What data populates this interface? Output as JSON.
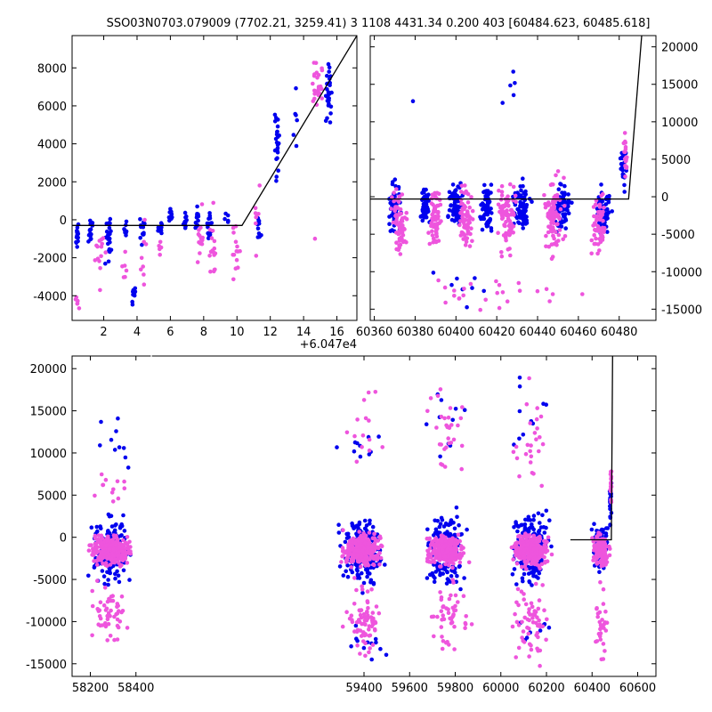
{
  "figure": {
    "title": "SSO03N0703.079009 (7702.21, 3259.41)    3 1108 4431.34 0.200 403 [60484.623, 60485.618]"
  },
  "colors": {
    "blue": "#0000ee",
    "magenta": "#ee55dd",
    "model": "#000000"
  },
  "chart_data": [
    {
      "id": "top_left",
      "type": "scatter",
      "title": "",
      "x_offset_label": "+6.047e4",
      "xlim": [
        0.1,
        17.2
      ],
      "ylim": [
        -5300,
        9700
      ],
      "xticks": [
        2,
        4,
        6,
        8,
        10,
        12,
        14,
        16
      ],
      "yticks": [
        -4000,
        -2000,
        0,
        2000,
        4000,
        6000,
        8000
      ],
      "ytick_side": "left",
      "model": {
        "x": [
          0.1,
          10.3,
          17.2
        ],
        "y": [
          -300,
          -300,
          9700
        ]
      },
      "series": [
        {
          "color": "blue",
          "clusters": [
            {
              "x": 0.4,
              "dx": 0.15,
              "ymin": -2000,
              "ymax": 200,
              "n": 14
            },
            {
              "x": 1.2,
              "dx": 0.15,
              "ymin": -1800,
              "ymax": 500,
              "n": 14
            },
            {
              "x": 2.3,
              "dx": 0.25,
              "ymin": -2500,
              "ymax": 300,
              "n": 22
            },
            {
              "x": 3.3,
              "dx": 0.15,
              "ymin": -1200,
              "ymax": 300,
              "n": 8
            },
            {
              "x": 3.8,
              "dx": 0.15,
              "ymin": -4900,
              "ymax": -3200,
              "n": 10
            },
            {
              "x": 4.3,
              "dx": 0.25,
              "ymin": -1500,
              "ymax": 500,
              "n": 12
            },
            {
              "x": 5.4,
              "dx": 0.25,
              "ymin": -1200,
              "ymax": 500,
              "n": 10
            },
            {
              "x": 6.0,
              "dx": 0.15,
              "ymin": -500,
              "ymax": 800,
              "n": 12
            },
            {
              "x": 6.9,
              "dx": 0.15,
              "ymin": -800,
              "ymax": 600,
              "n": 12
            },
            {
              "x": 7.6,
              "dx": 0.15,
              "ymin": -800,
              "ymax": 900,
              "n": 14
            },
            {
              "x": 8.4,
              "dx": 0.25,
              "ymin": -1500,
              "ymax": 900,
              "n": 16
            },
            {
              "x": 9.4,
              "dx": 0.15,
              "ymin": -300,
              "ymax": 400,
              "n": 5
            },
            {
              "x": 11.3,
              "dx": 0.2,
              "ymin": -1500,
              "ymax": 1000,
              "n": 10
            },
            {
              "x": 12.4,
              "dx": 0.2,
              "ymin": 1500,
              "ymax": 6500,
              "n": 24
            },
            {
              "x": 13.5,
              "dx": 0.2,
              "ymin": 2000,
              "ymax": 8000,
              "n": 6
            },
            {
              "x": 15.5,
              "dx": 0.3,
              "ymin": 3900,
              "ymax": 9200,
              "n": 28
            }
          ]
        },
        {
          "color": "magenta",
          "clusters": [
            {
              "x": 0.4,
              "dx": 0.2,
              "ymin": -5200,
              "ymax": -3500,
              "n": 6
            },
            {
              "x": 1.8,
              "dx": 0.4,
              "ymin": -4600,
              "ymax": 700,
              "n": 14
            },
            {
              "x": 3.3,
              "dx": 0.3,
              "ymin": -3600,
              "ymax": -1200,
              "n": 6
            },
            {
              "x": 4.4,
              "dx": 0.3,
              "ymin": -4200,
              "ymax": 300,
              "n": 8
            },
            {
              "x": 5.4,
              "dx": 0.3,
              "ymin": -3000,
              "ymax": 0,
              "n": 5
            },
            {
              "x": 7.8,
              "dx": 0.3,
              "ymin": -4300,
              "ymax": 1700,
              "n": 14
            },
            {
              "x": 8.5,
              "dx": 0.3,
              "ymin": -5000,
              "ymax": 1500,
              "n": 16
            },
            {
              "x": 9.9,
              "dx": 0.35,
              "ymin": -4100,
              "ymax": 600,
              "n": 14
            },
            {
              "x": 11.2,
              "dx": 0.3,
              "ymin": -3000,
              "ymax": 3000,
              "n": 8
            },
            {
              "x": 14.8,
              "dx": 0.5,
              "ymin": 5500,
              "ymax": 9000,
              "n": 26
            },
            {
              "x": 14.7,
              "dx": 0.1,
              "ymin": -1200,
              "ymax": -900,
              "n": 1
            }
          ]
        }
      ]
    },
    {
      "id": "top_right",
      "type": "scatter",
      "title": "",
      "xlim": [
        60358,
        60498
      ],
      "ylim": [
        -16500,
        21500
      ],
      "xticks": [
        60360,
        60380,
        60400,
        60420,
        60440,
        60460,
        60480
      ],
      "yticks": [
        -15000,
        -10000,
        -5000,
        0,
        5000,
        10000,
        15000,
        20000
      ],
      "ytick_side": "right",
      "model": {
        "x": [
          60358,
          60484.6,
          60491
        ],
        "y": [
          -300,
          -300,
          21500
        ]
      },
      "series": [
        {
          "color": "blue",
          "clusters": [
            {
              "x": 60370,
              "dx": 4,
              "ymin": -6000,
              "ymax": 3000,
              "n": 60
            },
            {
              "x": 60385,
              "dx": 3,
              "ymin": -5500,
              "ymax": 2500,
              "n": 50
            },
            {
              "x": 60400,
              "dx": 5,
              "ymin": -5000,
              "ymax": 3000,
              "n": 70
            },
            {
              "x": 60415,
              "dx": 4,
              "ymin": -5500,
              "ymax": 2500,
              "n": 60
            },
            {
              "x": 60432,
              "dx": 6,
              "ymin": -6000,
              "ymax": 3000,
              "n": 80
            },
            {
              "x": 60452,
              "dx": 6,
              "ymin": -6000,
              "ymax": 3000,
              "n": 80
            },
            {
              "x": 60472,
              "dx": 5,
              "ymin": -6000,
              "ymax": 2000,
              "n": 60
            },
            {
              "x": 60482,
              "dx": 2,
              "ymin": 0,
              "ymax": 9000,
              "n": 25
            },
            {
              "x": 60400,
              "dx": 20,
              "ymin": -15000,
              "ymax": -9000,
              "n": 8
            },
            {
              "x": 60430,
              "dx": 10,
              "ymin": 9000,
              "ymax": 21000,
              "n": 5
            },
            {
              "x": 60380,
              "dx": 2,
              "ymin": 12000,
              "ymax": 13500,
              "n": 1
            }
          ]
        },
        {
          "color": "magenta",
          "clusters": [
            {
              "x": 60372,
              "dx": 5,
              "ymin": -10000,
              "ymax": 2500,
              "n": 70
            },
            {
              "x": 60390,
              "dx": 4,
              "ymin": -8000,
              "ymax": 2500,
              "n": 60
            },
            {
              "x": 60405,
              "dx": 5,
              "ymin": -9000,
              "ymax": 3000,
              "n": 70
            },
            {
              "x": 60425,
              "dx": 6,
              "ymin": -9000,
              "ymax": 4000,
              "n": 80
            },
            {
              "x": 60448,
              "dx": 7,
              "ymin": -10000,
              "ymax": 5000,
              "n": 90
            },
            {
              "x": 60470,
              "dx": 5,
              "ymin": -11000,
              "ymax": 2500,
              "n": 60
            },
            {
              "x": 60483,
              "dx": 1.5,
              "ymin": 2000,
              "ymax": 9000,
              "n": 20
            },
            {
              "x": 60420,
              "dx": 60,
              "ymin": -16000,
              "ymax": -10000,
              "n": 25
            }
          ]
        }
      ]
    },
    {
      "id": "bottom",
      "type": "scatter",
      "title": "",
      "xlim": [
        58120,
        60680
      ],
      "ylim": [
        -16500,
        21500
      ],
      "xticks": [
        58200,
        58400,
        59400,
        59600,
        59800,
        60000,
        60200,
        60400,
        60600
      ],
      "yticks": [
        -15000,
        -10000,
        -5000,
        0,
        5000,
        10000,
        15000,
        20000
      ],
      "ytick_side": "left",
      "model": {
        "x": [
          60305,
          60484.6,
          60490
        ],
        "y": [
          -300,
          -300,
          21500
        ]
      },
      "series": [
        {
          "color": "blue",
          "clusters": [
            {
              "x": 58290,
              "dx": 110,
              "ymin": -7000,
              "ymax": 4000,
              "n": 180
            },
            {
              "x": 59390,
              "dx": 115,
              "ymin": -7000,
              "ymax": 4000,
              "n": 200
            },
            {
              "x": 59760,
              "dx": 110,
              "ymin": -7000,
              "ymax": 4500,
              "n": 180
            },
            {
              "x": 60130,
              "dx": 110,
              "ymin": -7000,
              "ymax": 4500,
              "n": 180
            },
            {
              "x": 60440,
              "dx": 45,
              "ymin": -5000,
              "ymax": 3000,
              "n": 90
            },
            {
              "x": 60480,
              "dx": 6,
              "ymin": 0,
              "ymax": 9000,
              "n": 20
            },
            {
              "x": 58300,
              "dx": 110,
              "ymin": 6000,
              "ymax": 17500,
              "n": 10
            },
            {
              "x": 59380,
              "dx": 120,
              "ymin": 6000,
              "ymax": 17000,
              "n": 10
            },
            {
              "x": 59760,
              "dx": 110,
              "ymin": 6000,
              "ymax": 21000,
              "n": 10
            },
            {
              "x": 60130,
              "dx": 110,
              "ymin": 6000,
              "ymax": 21000,
              "n": 10
            },
            {
              "x": 59400,
              "dx": 120,
              "ymin": -16500,
              "ymax": -9000,
              "n": 12
            },
            {
              "x": 60150,
              "dx": 110,
              "ymin": -14000,
              "ymax": -8000,
              "n": 8
            }
          ]
        },
        {
          "color": "magenta",
          "clusters": [
            {
              "x": 58290,
              "dx": 110,
              "ymin": -4000,
              "ymax": 1000,
              "n": 260
            },
            {
              "x": 59390,
              "dx": 115,
              "ymin": -4000,
              "ymax": 1000,
              "n": 280
            },
            {
              "x": 59760,
              "dx": 110,
              "ymin": -4000,
              "ymax": 1000,
              "n": 260
            },
            {
              "x": 60130,
              "dx": 110,
              "ymin": -4000,
              "ymax": 1000,
              "n": 260
            },
            {
              "x": 60440,
              "dx": 45,
              "ymin": -4000,
              "ymax": 1000,
              "n": 120
            },
            {
              "x": 58290,
              "dx": 110,
              "ymin": -14000,
              "ymax": -4000,
              "n": 50
            },
            {
              "x": 59400,
              "dx": 115,
              "ymin": -16000,
              "ymax": -4000,
              "n": 70
            },
            {
              "x": 59770,
              "dx": 110,
              "ymin": -15000,
              "ymax": -4000,
              "n": 50
            },
            {
              "x": 60130,
              "dx": 110,
              "ymin": -16000,
              "ymax": -4000,
              "n": 60
            },
            {
              "x": 60440,
              "dx": 40,
              "ymin": -16000,
              "ymax": -4000,
              "n": 30
            },
            {
              "x": 60483,
              "dx": 4,
              "ymin": 3000,
              "ymax": 9500,
              "n": 20
            },
            {
              "x": 59770,
              "dx": 110,
              "ymin": 4000,
              "ymax": 20000,
              "n": 30
            },
            {
              "x": 60130,
              "dx": 100,
              "ymin": 4000,
              "ymax": 20000,
              "n": 25
            },
            {
              "x": 58280,
              "dx": 100,
              "ymin": 3000,
              "ymax": 9000,
              "n": 12
            },
            {
              "x": 59400,
              "dx": 110,
              "ymin": 3000,
              "ymax": 21000,
              "n": 14
            }
          ]
        }
      ]
    }
  ]
}
